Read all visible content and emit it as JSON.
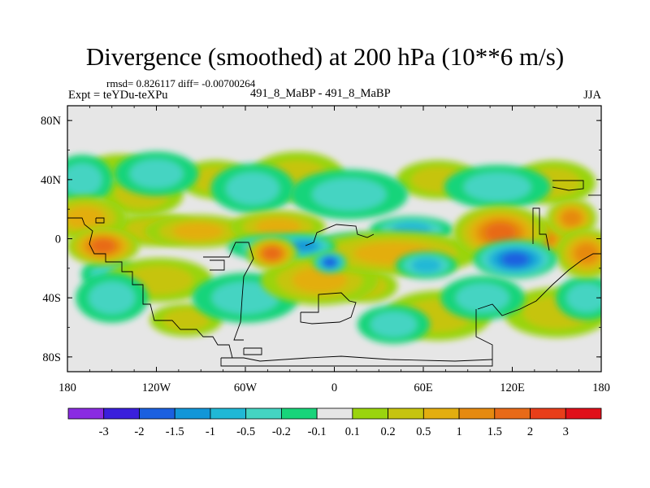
{
  "chart_data": {
    "type": "heatmap",
    "title": "Divergence (smoothed) at 200 hPa (10**6 m/s)",
    "stats_line": "rmsd= 0.826117 diff= -0.00700264",
    "left_label": "Expt = teYDu-teXPu",
    "center_label": "491_8_MaBP - 491_8_MaBP",
    "right_label": "JJA",
    "x_axis": {
      "range": [
        -180,
        180
      ],
      "ticks": [
        {
          "value": -180,
          "label": "180"
        },
        {
          "value": -120,
          "label": "120W"
        },
        {
          "value": -60,
          "label": "60W"
        },
        {
          "value": 0,
          "label": "0"
        },
        {
          "value": 60,
          "label": "60E"
        },
        {
          "value": 120,
          "label": "120E"
        },
        {
          "value": 180,
          "label": "180"
        }
      ]
    },
    "y_axis": {
      "range": [
        -90,
        90
      ],
      "ticks": [
        {
          "value": 80,
          "label": "80N"
        },
        {
          "value": 40,
          "label": "40N"
        },
        {
          "value": 0,
          "label": "0"
        },
        {
          "value": -40,
          "label": "40S"
        },
        {
          "value": -80,
          "label": "80S"
        }
      ]
    },
    "colorbar": {
      "colors": [
        "#8a2be2",
        "#3a1fdc",
        "#1b60e0",
        "#1296d8",
        "#20b8d6",
        "#44d4c2",
        "#18d47a",
        "#e6e6e6",
        "#9ad40e",
        "#c6c410",
        "#e3ae10",
        "#e68a10",
        "#e86a18",
        "#e83e1a",
        "#e0101a"
      ],
      "labels": [
        "-3",
        "-2",
        "-1.5",
        "-1",
        "-0.5",
        "-0.2",
        "-0.1",
        "0.1",
        "0.2",
        "0.5",
        "1",
        "1.5",
        "2",
        "3"
      ]
    },
    "centers": [
      {
        "lon": -168,
        "lat": 14,
        "rx": 14,
        "ry": 7,
        "level": 3
      },
      {
        "lon": -156,
        "lat": -5,
        "rx": 12,
        "ry": 6,
        "level": 5
      },
      {
        "lon": -122,
        "lat": 6,
        "rx": 16,
        "ry": 5,
        "level": 2
      },
      {
        "lon": -92,
        "lat": 5,
        "rx": 18,
        "ry": 5,
        "level": 3
      },
      {
        "lon": -38,
        "lat": 8,
        "rx": 16,
        "ry": 5,
        "level": 3
      },
      {
        "lon": -42,
        "lat": -10,
        "rx": 8,
        "ry": 5,
        "level": 5
      },
      {
        "lon": -152,
        "lat": -24,
        "rx": 9,
        "ry": 5,
        "level": -2
      },
      {
        "lon": -118,
        "lat": -28,
        "rx": 18,
        "ry": 7,
        "level": 2
      },
      {
        "lon": -36,
        "lat": -6,
        "rx": 18,
        "ry": 4,
        "level": -3
      },
      {
        "lon": -20,
        "lat": -5,
        "rx": 10,
        "ry": 3,
        "level": -4
      },
      {
        "lon": 14,
        "lat": -5,
        "rx": 14,
        "ry": 4,
        "level": -3
      },
      {
        "lon": 52,
        "lat": 6,
        "rx": 14,
        "ry": 4,
        "level": -3
      },
      {
        "lon": -10,
        "lat": -28,
        "rx": 20,
        "ry": 8,
        "level": 3
      },
      {
        "lon": 22,
        "lat": -32,
        "rx": 10,
        "ry": 5,
        "level": 2
      },
      {
        "lon": -3,
        "lat": -16,
        "rx": 5,
        "ry": 3,
        "level": -5
      },
      {
        "lon": 40,
        "lat": -10,
        "rx": 30,
        "ry": 7,
        "level": 3
      },
      {
        "lon": 62,
        "lat": -18,
        "rx": 10,
        "ry": 4,
        "level": -3
      },
      {
        "lon": 112,
        "lat": 4,
        "rx": 16,
        "ry": 9,
        "level": 5
      },
      {
        "lon": 140,
        "lat": 0,
        "rx": 12,
        "ry": 6,
        "level": 4
      },
      {
        "lon": 122,
        "lat": -14,
        "rx": 14,
        "ry": 6,
        "level": -5
      },
      {
        "lon": 160,
        "lat": 14,
        "rx": 8,
        "ry": 6,
        "level": 4
      },
      {
        "lon": 170,
        "lat": -10,
        "rx": 10,
        "ry": 8,
        "level": 4
      },
      {
        "lon": -130,
        "lat": 30,
        "rx": 14,
        "ry": 7,
        "level": 2
      },
      {
        "lon": -80,
        "lat": 40,
        "rx": 12,
        "ry": 6,
        "level": 2
      },
      {
        "lon": -25,
        "lat": 42,
        "rx": 16,
        "ry": 8,
        "level": 2
      },
      {
        "lon": 70,
        "lat": 40,
        "rx": 14,
        "ry": 6,
        "level": 2
      },
      {
        "lon": 148,
        "lat": 38,
        "rx": 14,
        "ry": 7,
        "level": 2
      },
      {
        "lon": -145,
        "lat": 48,
        "rx": 10,
        "ry": 4,
        "level": 1
      },
      {
        "lon": -100,
        "lat": -55,
        "rx": 12,
        "ry": 5,
        "level": 2
      },
      {
        "lon": 70,
        "lat": -52,
        "rx": 18,
        "ry": 8,
        "level": 2
      },
      {
        "lon": 150,
        "lat": -50,
        "rx": 18,
        "ry": 8,
        "level": 2
      },
      {
        "lon": -170,
        "lat": 40,
        "rx": 10,
        "ry": 8,
        "level": -2
      },
      {
        "lon": -120,
        "lat": 44,
        "rx": 14,
        "ry": 7,
        "level": -2
      },
      {
        "lon": -55,
        "lat": 34,
        "rx": 14,
        "ry": 8,
        "level": -2
      },
      {
        "lon": 10,
        "lat": 30,
        "rx": 20,
        "ry": 8,
        "level": -2
      },
      {
        "lon": 110,
        "lat": 35,
        "rx": 18,
        "ry": 7,
        "level": -2
      },
      {
        "lon": -150,
        "lat": -40,
        "rx": 12,
        "ry": 8,
        "level": -2
      },
      {
        "lon": -60,
        "lat": -40,
        "rx": 18,
        "ry": 8,
        "level": -2
      },
      {
        "lon": 100,
        "lat": -40,
        "rx": 14,
        "ry": 7,
        "level": -2
      },
      {
        "lon": 170,
        "lat": -40,
        "rx": 10,
        "ry": 7,
        "level": -2
      },
      {
        "lon": 40,
        "lat": -58,
        "rx": 12,
        "ry": 6,
        "level": -2
      }
    ]
  }
}
